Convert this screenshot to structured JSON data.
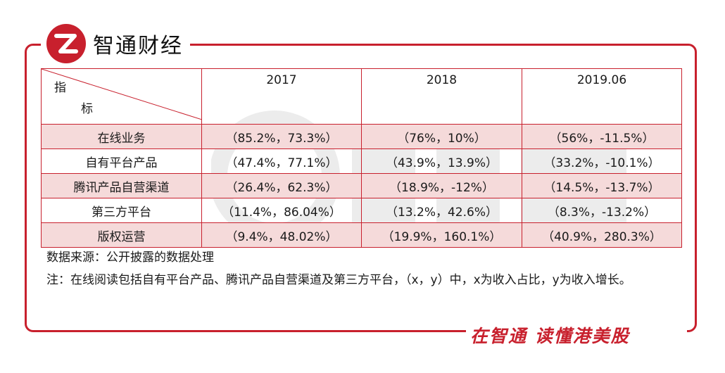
{
  "brand": {
    "name": "智通财经",
    "logo_letter": "Z"
  },
  "footer": {
    "slogan": "在智通 读懂港美股"
  },
  "table": {
    "corner_top": "指",
    "corner_bottom": "标",
    "columns": [
      "2017",
      "2018",
      "2019.06"
    ],
    "rows": [
      {
        "label": "在线业务",
        "cells": [
          "（85.2%，73.3%）",
          "（76%，10%）",
          "（56%，-11.5%）"
        ]
      },
      {
        "label": "自有平台产品",
        "cells": [
          "（47.4%，77.1%）",
          "（43.9%，13.9%）",
          "（33.2%，-10.1%）"
        ]
      },
      {
        "label": "腾讯产品自营渠道",
        "cells": [
          "（26.4%，62.3%）",
          "（18.9%，-12%）",
          "（14.5%，-13.7%）"
        ]
      },
      {
        "label": "第三方平台",
        "cells": [
          "（11.4%，86.04%）",
          "（13.2%，42.6%）",
          "（8.3%，-13.2%）"
        ]
      },
      {
        "label": "版权运营",
        "cells": [
          "（9.4%，48.02%）",
          "（19.9%，160.1%）",
          "（40.9%，280.3%）"
        ]
      }
    ]
  },
  "notes": {
    "source": "数据来源：公开披露的数据处理",
    "note": "注：在线阅读包括自有平台产品、腾讯产品自营渠道及第三方平台，（x，y）中，x为收入占比，y为收入增长。"
  },
  "colors": {
    "brand_red": "#c8202d",
    "row_highlight": "#f5dada"
  }
}
